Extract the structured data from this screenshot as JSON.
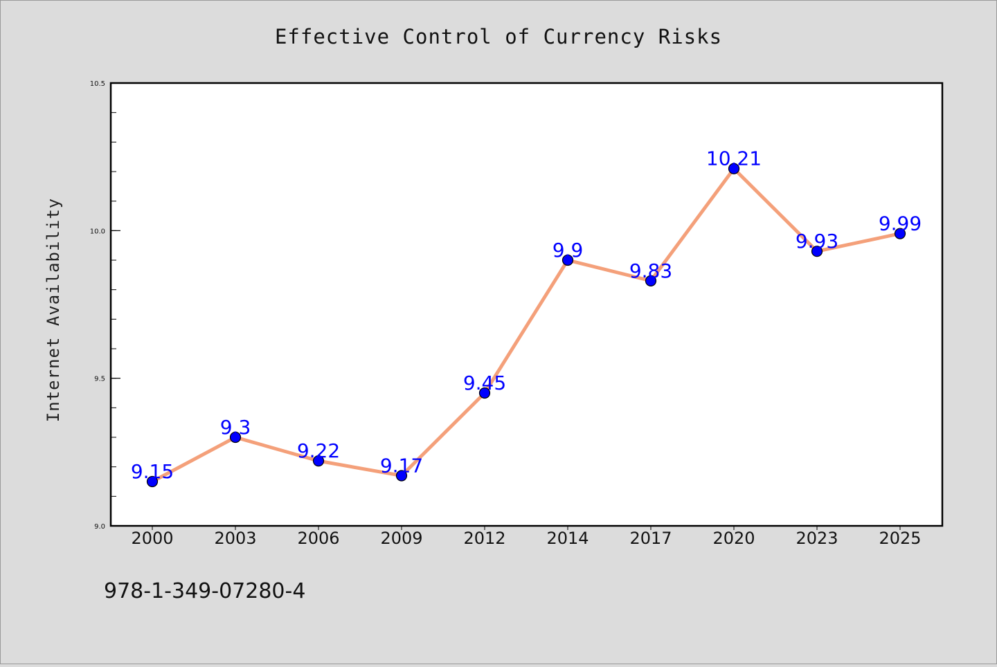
{
  "chart_data": {
    "type": "line",
    "title": "Effective Control of Currency Risks",
    "xlabel": "",
    "ylabel": "Internet Availability",
    "categories": [
      "2000",
      "2003",
      "2006",
      "2009",
      "2012",
      "2014",
      "2017",
      "2020",
      "2023",
      "2025"
    ],
    "values": [
      9.15,
      9.3,
      9.22,
      9.17,
      9.45,
      9.9,
      9.83,
      10.21,
      9.93,
      9.99
    ],
    "ylim": [
      9.0,
      10.5
    ],
    "yticks": [
      "9.0",
      "9.5",
      "10.0",
      "10.5"
    ],
    "grid": false,
    "legend": "none",
    "line_color": "#f4a07a",
    "marker_color": "#0000ff",
    "label_color": "#0000ff"
  },
  "footer": {
    "isbn": "978-1-349-07280-4"
  }
}
